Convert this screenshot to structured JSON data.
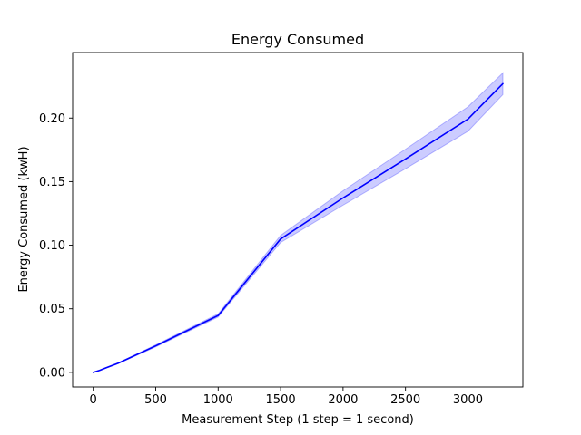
{
  "chart_data": {
    "type": "line",
    "title": "Energy Consumed",
    "xlabel": "Measurement Step (1 step = 1 second)",
    "ylabel": "Energy Consumed (kwH)",
    "xlim": [
      -165,
      3440
    ],
    "ylim": [
      -0.0115,
      0.2515
    ],
    "x_ticks": [
      0,
      500,
      1000,
      1500,
      2000,
      2500,
      3000
    ],
    "x_tick_labels": [
      "0",
      "500",
      "1000",
      "1500",
      "2000",
      "2500",
      "3000"
    ],
    "y_ticks": [
      0.0,
      0.05,
      0.1,
      0.15,
      0.2
    ],
    "y_tick_labels": [
      "0.00",
      "0.05",
      "0.10",
      "0.15",
      "0.20"
    ],
    "grid": false,
    "colors": {
      "line": "#0000ff",
      "band": "#0000ff",
      "band_opacity": 0.2
    },
    "series": [
      {
        "x": [
          0,
          50,
          100,
          200,
          500,
          1000,
          1500,
          2000,
          2500,
          3000,
          3280
        ],
        "mean": [
          0.0,
          0.0015,
          0.0035,
          0.0072,
          0.0208,
          0.0447,
          0.1049,
          0.1372,
          0.1678,
          0.1992,
          0.227
        ],
        "lower": [
          0.0,
          0.0014,
          0.0033,
          0.0069,
          0.02,
          0.0435,
          0.1021,
          0.1315,
          0.1601,
          0.1896,
          0.2185
        ],
        "upper": [
          0.0,
          0.0016,
          0.0037,
          0.0075,
          0.0216,
          0.046,
          0.1077,
          0.1428,
          0.1755,
          0.2088,
          0.2355
        ]
      }
    ]
  }
}
